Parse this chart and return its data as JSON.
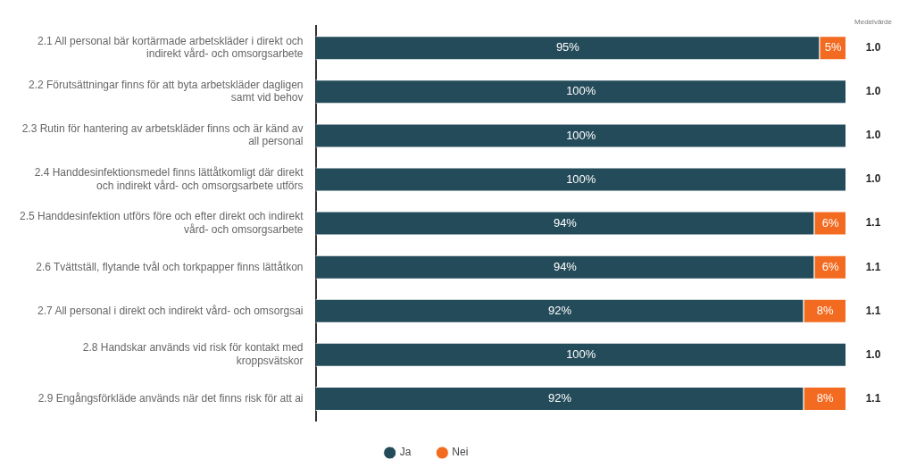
{
  "chart_data": {
    "type": "bar",
    "orientation": "horizontal",
    "stacked": true,
    "categories": [
      "2.1 All personal bär kortärmade arbetskläder i direkt och indirekt vård- och omsorgsarbete",
      "2.2 Förutsättningar finns för att byta arbetskläder dagligen samt vid behov",
      "2.3 Rutin för hantering av arbetskläder finns och är känd av all personal",
      "2.4 Handdesinfektionsmedel finns lättåtkomligt där direkt och indirekt vård- och omsorgsarbete utförs",
      "2.5 Handdesinfektion utförs före och efter direkt och indirekt vård- och omsorgsarbete",
      "2.6 Tvättställ, flytande tvål och torkpapper finns lättåtkon",
      "2.7 All personal i direkt och indirekt vård- och omsorgsai",
      "2.8 Handskar används vid risk för kontakt med kroppsvätskor",
      "2.9 Engångsförkläde används när det finns risk för att ai"
    ],
    "series": [
      {
        "name": "Ja",
        "color": "#244b5a",
        "values": [
          95,
          100,
          100,
          100,
          94,
          94,
          92,
          100,
          92
        ],
        "value_labels": [
          "95%",
          "100%",
          "100%",
          "100%",
          "94%",
          "94%",
          "92%",
          "100%",
          "92%"
        ]
      },
      {
        "name": "Nei",
        "color": "#f26b21",
        "values": [
          5,
          0,
          0,
          0,
          6,
          6,
          8,
          0,
          8
        ],
        "value_labels": [
          "5%",
          null,
          null,
          null,
          "6%",
          "6%",
          "8%",
          null,
          "8%"
        ]
      }
    ],
    "xlim": [
      0,
      100
    ],
    "tick_labels": "y",
    "grid": false,
    "legend": "bottom",
    "annotations": [
      "Medelvärde",
      "1.0",
      "1.0",
      "1.0",
      "1.0",
      "1.1",
      "1.1",
      "1.1",
      "1.0",
      "1.1"
    ]
  }
}
